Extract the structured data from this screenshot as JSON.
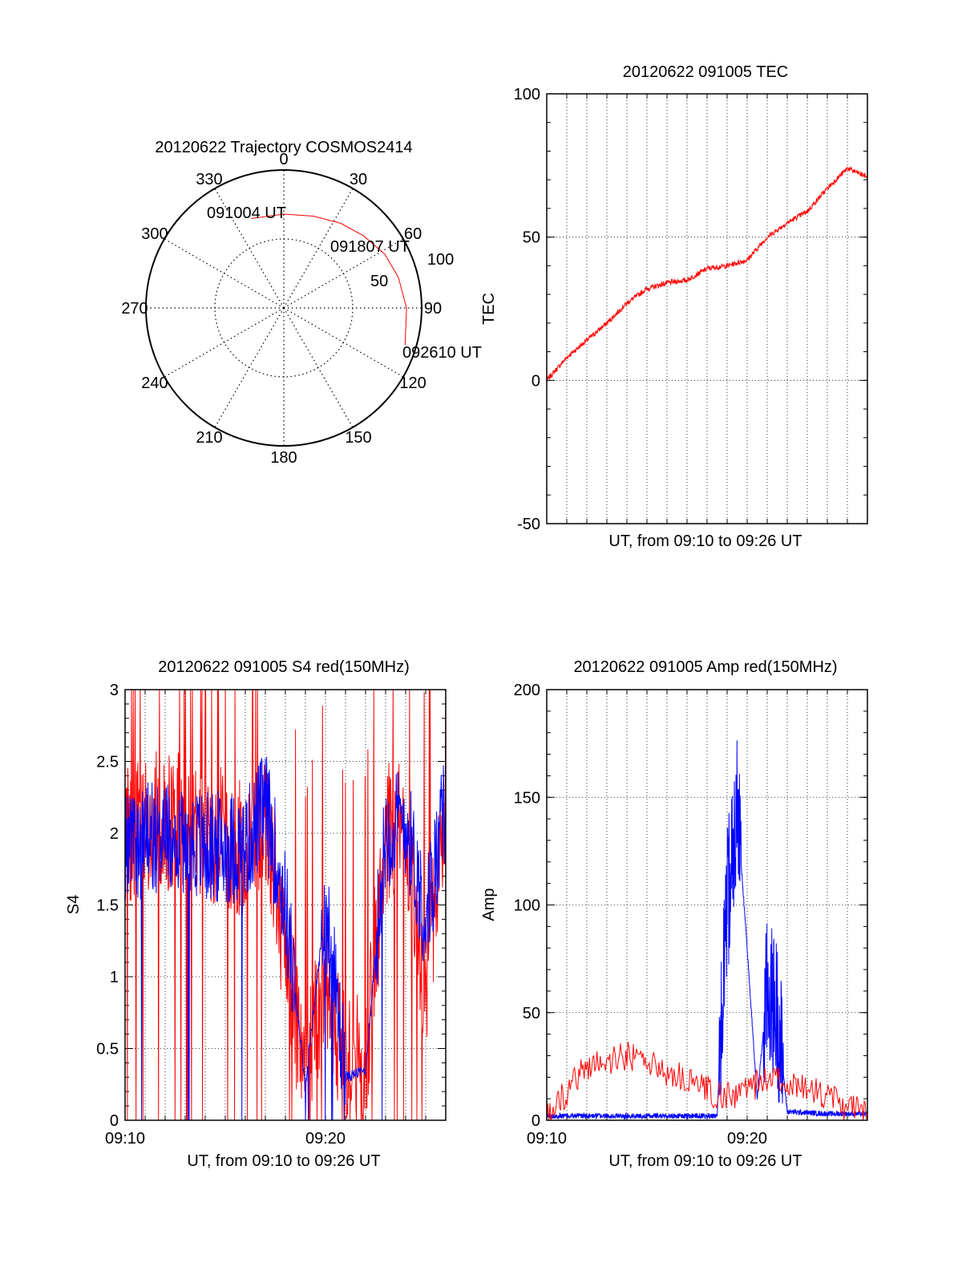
{
  "chart_data": [
    {
      "type": "polar",
      "title": "20120622 Trajectory COSMOS2414",
      "azimuth_labels": [
        "0",
        "30",
        "60",
        "90",
        "120",
        "150",
        "180",
        "210",
        "240",
        "270",
        "300",
        "330"
      ],
      "radial_labels": [
        "50",
        "100"
      ],
      "trajectory": [
        {
          "azimuth": 340,
          "elevation": 31
        },
        {
          "azimuth": 0,
          "elevation": 32
        },
        {
          "azimuth": 18,
          "elevation": 30
        },
        {
          "azimuth": 34,
          "elevation": 26
        },
        {
          "azimuth": 48,
          "elevation": 22
        },
        {
          "azimuth": 62,
          "elevation": 17
        },
        {
          "azimuth": 75,
          "elevation": 14
        },
        {
          "azimuth": 90,
          "elevation": 11
        },
        {
          "azimuth": 107,
          "elevation": 8
        }
      ],
      "annotations": [
        "091004 UT",
        "091807 UT",
        "092610 UT"
      ]
    },
    {
      "type": "line",
      "title": "20120622 091005 TEC",
      "xlabel": "UT, from 09:10 to 09:26 UT",
      "ylabel": "TEC",
      "ylim": [
        -50,
        100
      ],
      "yticks": [
        "-50",
        "0",
        "50",
        "100"
      ],
      "xlim": [
        "09:10",
        "09:26"
      ],
      "grid": true,
      "series": [
        {
          "color": "#ff0000",
          "x": [
            "09:10",
            "09:11",
            "09:12",
            "09:13",
            "09:14",
            "09:15",
            "09:16",
            "09:17",
            "09:18",
            "09:19",
            "09:20",
            "09:21",
            "09:22",
            "09:23",
            "09:24",
            "09:25",
            "09:26"
          ],
          "values": [
            0,
            8,
            14,
            20,
            27,
            32,
            34,
            35,
            39,
            40,
            42,
            50,
            55,
            59,
            67,
            74,
            71
          ]
        }
      ]
    },
    {
      "type": "line",
      "title": "20120622 091005 S4 red(150MHz)",
      "xlabel": "UT, from 09:10 to 09:26 UT",
      "ylabel": "S4",
      "ylim": [
        0,
        3
      ],
      "yticks": [
        "0",
        "0.5",
        "1",
        "1.5",
        "2",
        "2.5",
        "3"
      ],
      "xticks": [
        "09:10",
        "09:20"
      ],
      "grid": true,
      "series": [
        {
          "color": "#ff0000",
          "x": [
            "09:10",
            "09:12",
            "09:14",
            "09:16",
            "09:17",
            "09:18",
            "09:19",
            "09:20",
            "09:21",
            "09:22",
            "09:23",
            "09:24",
            "09:25",
            "09:26"
          ],
          "values": [
            2.0,
            2.1,
            2.0,
            1.9,
            2.1,
            1.2,
            0.25,
            1.0,
            0.35,
            0.4,
            2.0,
            2.0,
            0.9,
            2.3
          ]
        },
        {
          "color": "#0000ff",
          "x": [
            "09:10",
            "09:12",
            "09:14",
            "09:16",
            "09:17",
            "09:18",
            "09:19",
            "09:20",
            "09:21",
            "09:22",
            "09:23",
            "09:24",
            "09:25",
            "09:26"
          ],
          "values": [
            1.9,
            2.0,
            1.9,
            1.9,
            2.2,
            1.5,
            0.25,
            1.5,
            0.3,
            0.35,
            2.0,
            2.1,
            1.4,
            2.2
          ]
        }
      ]
    },
    {
      "type": "line",
      "title": "20120622 091005 Amp red(150MHz)",
      "xlabel": "UT, from 09:10 to 09:26 UT",
      "ylabel": "Amp",
      "ylim": [
        0,
        200
      ],
      "yticks": [
        "0",
        "50",
        "100",
        "150",
        "200"
      ],
      "xticks": [
        "09:10",
        "09:20"
      ],
      "grid": true,
      "series": [
        {
          "color": "#0000ff",
          "x": [
            "09:10",
            "09:14",
            "09:18.5",
            "09:19",
            "09:19.5",
            "09:20",
            "09:20.5",
            "09:21",
            "09:21.5",
            "09:22",
            "09:24",
            "09:26"
          ],
          "values": [
            2,
            2,
            2,
            100,
            145,
            80,
            10,
            60,
            50,
            4,
            3,
            3
          ]
        },
        {
          "color": "#ff0000",
          "x": [
            "09:18.6",
            "09:19",
            "09:19.5",
            "09:20",
            "09:20.5",
            "09:21",
            "09:21.5",
            "09:22"
          ],
          "values": [
            0,
            25,
            30,
            20,
            10,
            20,
            12,
            2
          ]
        }
      ]
    }
  ]
}
